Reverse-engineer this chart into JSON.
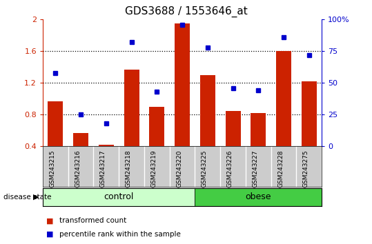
{
  "title": "GDS3688 / 1553646_at",
  "samples": [
    "GSM243215",
    "GSM243216",
    "GSM243217",
    "GSM243218",
    "GSM243219",
    "GSM243220",
    "GSM243225",
    "GSM243226",
    "GSM243227",
    "GSM243228",
    "GSM243275"
  ],
  "transformed_count": [
    0.97,
    0.57,
    0.42,
    1.37,
    0.9,
    1.95,
    1.3,
    0.85,
    0.82,
    1.6,
    1.22
  ],
  "percentile_rank": [
    0.58,
    0.25,
    0.18,
    0.82,
    0.43,
    0.96,
    0.78,
    0.46,
    0.44,
    0.86,
    0.72
  ],
  "groups": [
    {
      "label": "control",
      "start": 0,
      "end": 5,
      "color": "#ccffcc"
    },
    {
      "label": "obese",
      "start": 6,
      "end": 10,
      "color": "#44cc44"
    }
  ],
  "ylim_left": [
    0.4,
    2.0
  ],
  "ylim_right": [
    0.0,
    1.0
  ],
  "yticks_left": [
    0.4,
    0.8,
    1.2,
    1.6,
    2.0
  ],
  "ytick_labels_left": [
    "0.4",
    "0.8",
    "1.2",
    "1.6",
    "2"
  ],
  "yticks_right": [
    0.0,
    0.25,
    0.5,
    0.75,
    1.0
  ],
  "ytick_labels_right": [
    "0",
    "25",
    "50",
    "75",
    "100%"
  ],
  "bar_color": "#cc2200",
  "dot_color": "#0000cc",
  "label_bar": "transformed count",
  "label_dot": "percentile rank within the sample",
  "disease_state_label": "disease state",
  "tick_area_color": "#cccccc",
  "grid_yticks": [
    0.8,
    1.2,
    1.6
  ]
}
